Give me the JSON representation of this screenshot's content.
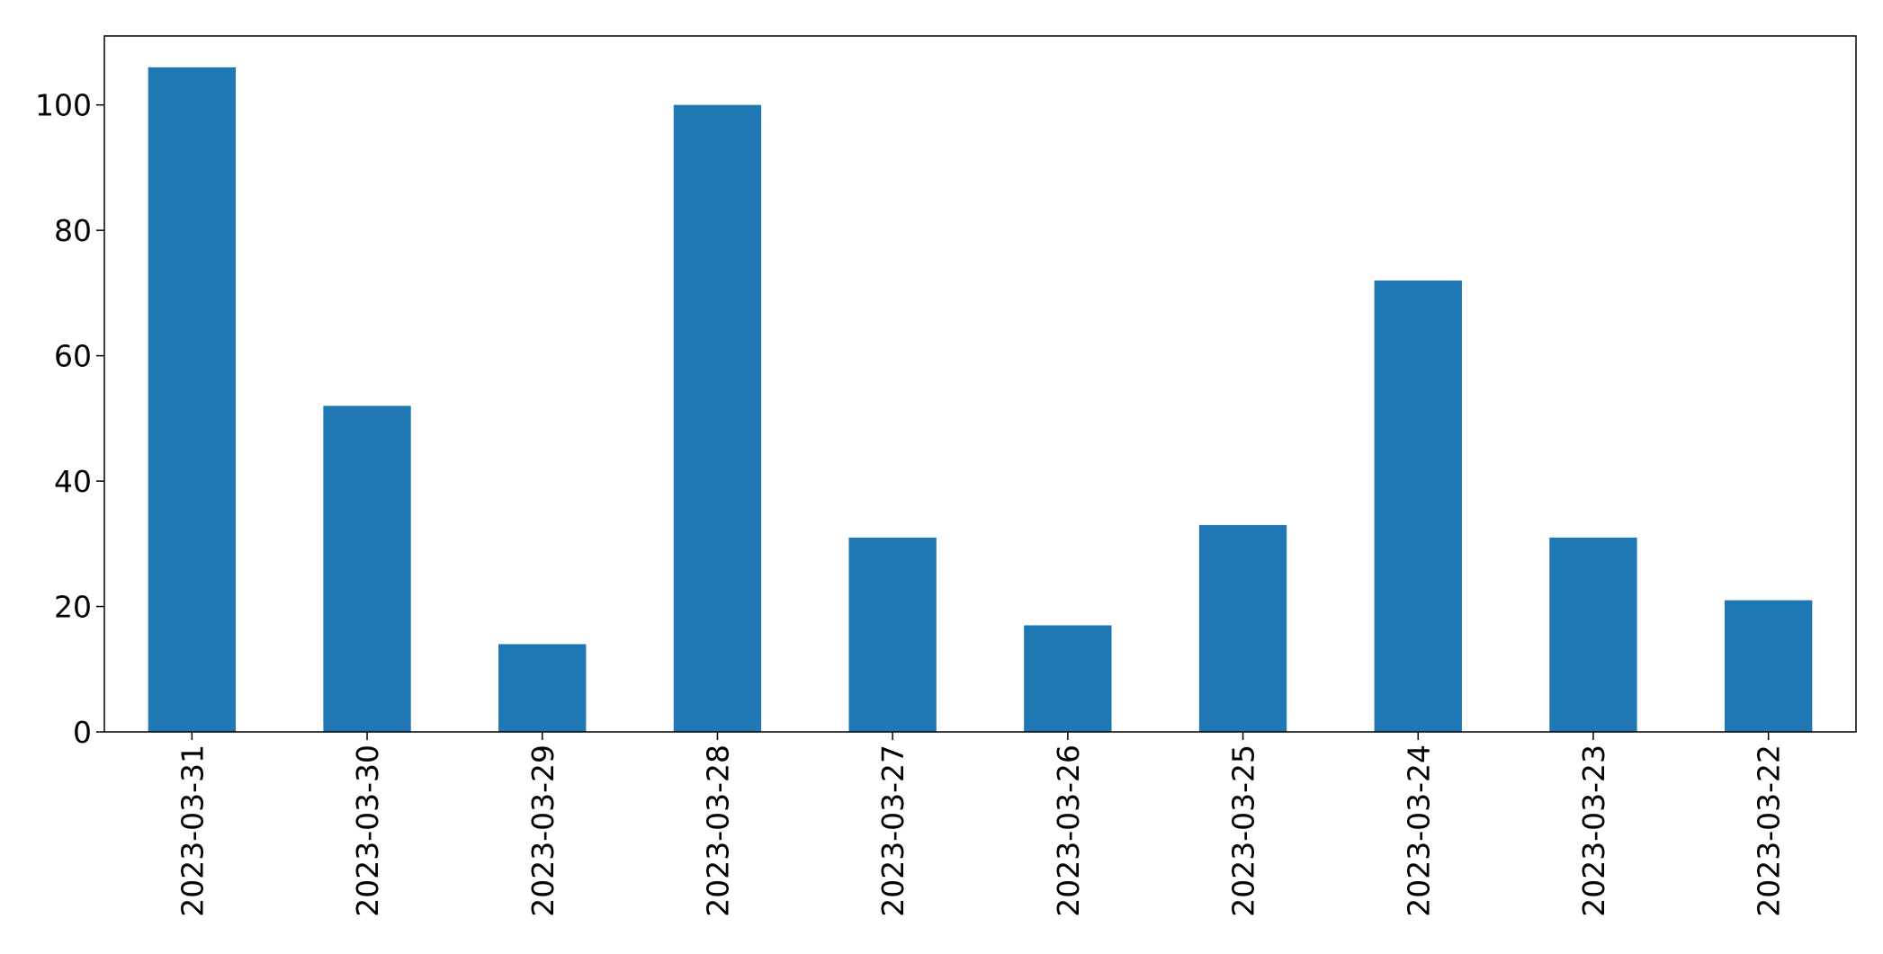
{
  "chart_data": {
    "type": "bar",
    "title": "",
    "xlabel": "",
    "ylabel": "",
    "categories": [
      "2023-03-31",
      "2023-03-30",
      "2023-03-29",
      "2023-03-28",
      "2023-03-27",
      "2023-03-26",
      "2023-03-25",
      "2023-03-24",
      "2023-03-23",
      "2023-03-22"
    ],
    "values": [
      106,
      52,
      14,
      100,
      31,
      17,
      33,
      72,
      31,
      21
    ],
    "ylim": [
      0,
      111
    ],
    "yticks": [
      0,
      20,
      40,
      60,
      80,
      100
    ],
    "ytick_labels": [
      "0",
      "20",
      "40",
      "60",
      "80",
      "100"
    ],
    "bar_color": "#1f77b4",
    "grid": false,
    "legend": "none"
  }
}
